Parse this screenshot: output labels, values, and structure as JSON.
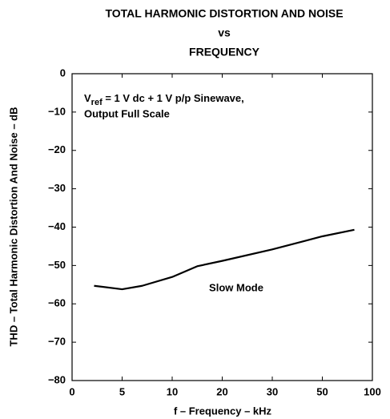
{
  "chart_data": {
    "type": "line",
    "title_lines": [
      "TOTAL HARMONIC DISTORTION AND NOISE",
      "vs",
      "FREQUENCY"
    ],
    "xlabel": "f – Frequency – kHz",
    "ylabel": "THD – Total Harmonic Distortion And Noise – dB",
    "annotation": {
      "symbol": "V",
      "subscript": "ref",
      "rest": " = 1 V dc + 1 V p/p Sinewave,",
      "line2": "Output Full Scale"
    },
    "curve_label": "Slow Mode",
    "x": [
      2.2,
      5,
      7,
      10,
      15,
      20,
      30,
      50,
      82
    ],
    "series": [
      {
        "name": "Slow Mode",
        "color": "#000000",
        "values": [
          -55.3,
          -56.2,
          -55.3,
          -53,
          -50.2,
          -48.8,
          -45.8,
          -42.4,
          -40.7
        ]
      }
    ],
    "xlim": [
      0,
      100
    ],
    "xticks": [
      0,
      5,
      10,
      20,
      30,
      50,
      100
    ],
    "ylim": [
      -80,
      0
    ],
    "yticks": [
      0,
      {
        "value": -10,
        "label": "−10"
      },
      {
        "value": -20,
        "label": "−20"
      },
      {
        "value": -30,
        "label": "−30"
      },
      {
        "value": -40,
        "label": "−40"
      },
      {
        "value": -50,
        "label": "−50"
      },
      {
        "value": -60,
        "label": "−60"
      },
      {
        "value": -70,
        "label": "−70"
      },
      {
        "value": -80,
        "label": "−80"
      }
    ]
  }
}
